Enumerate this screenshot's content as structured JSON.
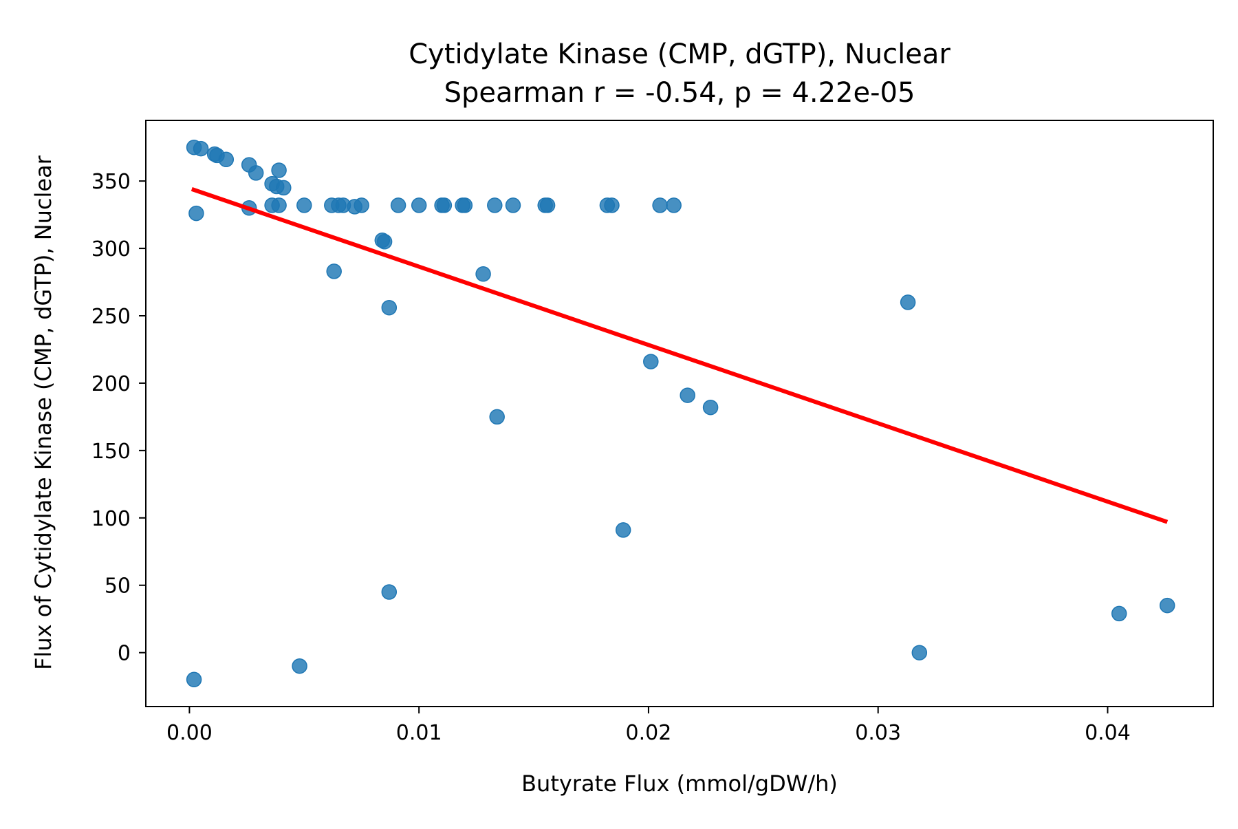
{
  "chart_data": {
    "type": "scatter",
    "title": "Cytidylate Kinase (CMP, dGTP), Nuclear",
    "subtitle": "Spearman r = -0.54, p = 4.22e-05",
    "xlabel": "Butyrate Flux (mmol/gDW/h)",
    "ylabel": "Flux of Cytidylate Kinase (CMP, dGTP), Nuclear",
    "xlim": [
      -0.0019,
      0.0446
    ],
    "ylim": [
      -40,
      395
    ],
    "x_ticks": [
      0.0,
      0.01,
      0.02,
      0.03,
      0.04
    ],
    "x_tick_labels": [
      "0.00",
      "0.01",
      "0.02",
      "0.03",
      "0.04"
    ],
    "y_ticks": [
      0,
      50,
      100,
      150,
      200,
      250,
      300,
      350
    ],
    "y_tick_labels": [
      "0",
      "50",
      "100",
      "150",
      "200",
      "250",
      "300",
      "350"
    ],
    "grid": false,
    "legend": "none",
    "points": {
      "color": "#1f77b4",
      "x": [
        0.0002,
        0.0005,
        0.0011,
        0.0012,
        0.0016,
        0.0026,
        0.0029,
        0.0039,
        0.0036,
        0.0038,
        0.0041,
        0.0003,
        0.0026,
        0.0036,
        0.0039,
        0.005,
        0.0062,
        0.0065,
        0.0067,
        0.0072,
        0.0075,
        0.0091,
        0.01,
        0.011,
        0.0111,
        0.0119,
        0.012,
        0.0133,
        0.0141,
        0.0155,
        0.0156,
        0.0182,
        0.0184,
        0.0205,
        0.0211,
        0.0084,
        0.0085,
        0.0063,
        0.0128,
        0.0087,
        0.0313,
        0.0201,
        0.0217,
        0.0227,
        0.0134,
        0.0189,
        0.0087,
        0.0002,
        0.0048,
        0.0318,
        0.0405,
        0.0426
      ],
      "y": [
        375,
        374,
        370,
        369,
        366,
        362,
        356,
        358,
        348,
        346,
        345,
        326,
        330,
        332,
        332,
        332,
        332,
        332,
        332,
        331,
        332,
        332,
        332,
        332,
        332,
        332,
        332,
        332,
        332,
        332,
        332,
        332,
        332,
        332,
        332,
        306,
        305,
        283,
        281,
        256,
        260,
        216,
        191,
        182,
        175,
        91,
        45,
        -20,
        -10,
        0,
        29,
        35
      ]
    },
    "fit_line": {
      "color": "#ff0000",
      "x": [
        0.0001,
        0.0426
      ],
      "y": [
        344,
        97
      ]
    }
  }
}
